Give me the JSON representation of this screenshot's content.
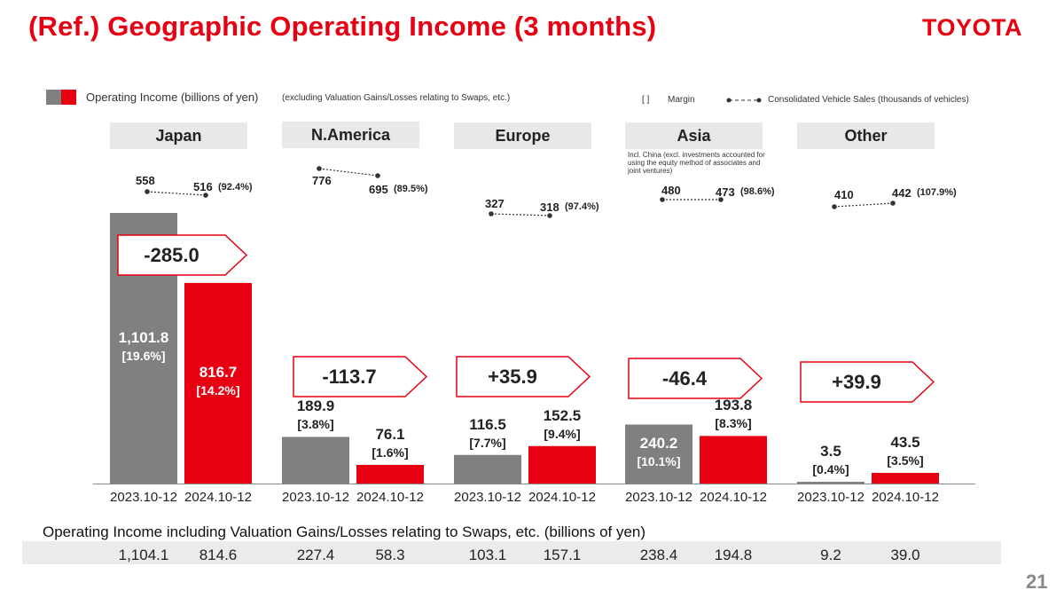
{
  "title": "(Ref.) Geographic Operating Income (3 months)",
  "brand": "TOYOTA",
  "page_number": "21",
  "legend": {
    "income_label": "Operating Income (billions of yen)",
    "income_note": "(excluding Valuation Gains/Losses relating to Swaps, etc.)",
    "margin_bracket": "[      ]",
    "margin_label": "Margin",
    "sales_label": "Consolidated Vehicle Sales (thousands of vehicles)"
  },
  "colors": {
    "accent": "#e60012",
    "prior": "#808080",
    "current": "#e60012"
  },
  "asia_note": "Incl. China (excl. investments accounted for using the equity method of associates and joint ventures)",
  "swap_caption": "Operating Income including Valuation Gains/Losses relating to Swaps, etc. (billions of yen)",
  "chart_data": {
    "type": "bar",
    "categories": [
      "2023.10-12",
      "2024.10-12"
    ],
    "ylim": [
      0,
      1101.8
    ],
    "regions": [
      {
        "name": "Japan",
        "values": [
          1101.8,
          816.7
        ],
        "value_labels": [
          "1,101.8",
          "816.7"
        ],
        "margins": [
          "[19.6%]",
          "[14.2%]"
        ],
        "change": "-285.0",
        "sales": [
          558,
          516
        ],
        "sales_ratio": "(92.4%)",
        "swap_values": [
          "1,104.1",
          "814.6"
        ]
      },
      {
        "name": "N.America",
        "values": [
          189.9,
          76.1
        ],
        "value_labels": [
          "189.9",
          "76.1"
        ],
        "margins": [
          "[3.8%]",
          "[1.6%]"
        ],
        "change": "-113.7",
        "sales": [
          776,
          695
        ],
        "sales_ratio": "(89.5%)",
        "swap_values": [
          "227.4",
          "58.3"
        ]
      },
      {
        "name": "Europe",
        "values": [
          116.5,
          152.5
        ],
        "value_labels": [
          "116.5",
          "152.5"
        ],
        "margins": [
          "[7.7%]",
          "[9.4%]"
        ],
        "change": "+35.9",
        "sales": [
          327,
          318
        ],
        "sales_ratio": "(97.4%)",
        "swap_values": [
          "103.1",
          "157.1"
        ]
      },
      {
        "name": "Asia",
        "values": [
          240.2,
          193.8
        ],
        "value_labels": [
          "240.2",
          "193.8"
        ],
        "margins": [
          "[10.1%]",
          "[8.3%]"
        ],
        "change": "-46.4",
        "sales": [
          480,
          473
        ],
        "sales_ratio": "(98.6%)",
        "swap_values": [
          "238.4",
          "194.8"
        ]
      },
      {
        "name": "Other",
        "values": [
          3.5,
          43.5
        ],
        "value_labels": [
          "3.5",
          "43.5"
        ],
        "margins": [
          "[0.4%]",
          "[3.5%]"
        ],
        "change": "+39.9",
        "sales": [
          410,
          442
        ],
        "sales_ratio": "(107.9%)",
        "swap_values": [
          "9.2",
          "39.0"
        ]
      }
    ]
  }
}
